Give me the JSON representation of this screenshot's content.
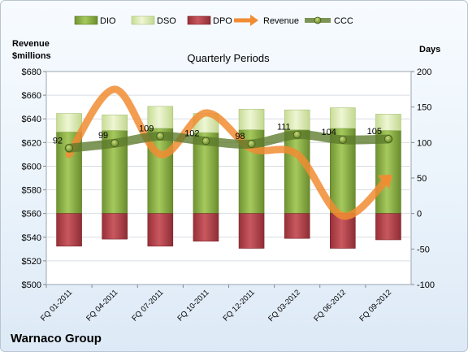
{
  "company": "Warnaco Group",
  "chart_data": {
    "type": "bar",
    "title": "Quarterly Periods",
    "left_axis_label_line1": "Revenue",
    "left_axis_label_line2": "$millions",
    "right_axis_label": "Days",
    "categories": [
      "FQ 01-2011",
      "FQ 04-2011",
      "FQ 07-2011",
      "FQ 10-2011",
      "FQ 12-2011",
      "FQ 03-2012",
      "FQ 06-2012",
      "FQ 09-2012"
    ],
    "left_ylim": [
      500,
      680
    ],
    "left_ticks": [
      "$500",
      "$520",
      "$540",
      "$560",
      "$580",
      "$600",
      "$620",
      "$640",
      "$660",
      "$680"
    ],
    "right_ylim": [
      -100,
      200
    ],
    "right_ticks": [
      "-100",
      "-50",
      "0",
      "50",
      "100",
      "150",
      "200"
    ],
    "legend_position": "top",
    "series": [
      {
        "name": "DIO",
        "axis": "right",
        "type": "stacked-bar",
        "values": [
          115,
          117,
          120,
          114,
          118,
          118,
          120,
          117
        ],
        "color": "#7da13c"
      },
      {
        "name": "DSO",
        "axis": "right",
        "type": "stacked-bar",
        "values": [
          26,
          22,
          31,
          27,
          29,
          28,
          29,
          23
        ],
        "color": "#dbe9b3"
      },
      {
        "name": "DPO",
        "axis": "right",
        "type": "stacked-bar",
        "values": [
          -46,
          -36,
          -46,
          -39,
          -49,
          -35,
          -49,
          -37
        ],
        "color": "#b5474f"
      },
      {
        "name": "Revenue",
        "axis": "left",
        "type": "line",
        "values": [
          610,
          665,
          610,
          645,
          615,
          610,
          558,
          590
        ],
        "color": "#f18c33"
      },
      {
        "name": "CCC",
        "axis": "right",
        "type": "line",
        "values": [
          92,
          99,
          109,
          102,
          98,
          111,
          104,
          105
        ],
        "labels": [
          "92",
          "99",
          "109",
          "102",
          "98",
          "111",
          "104",
          "105"
        ],
        "color": "#5c7a2b"
      }
    ]
  }
}
